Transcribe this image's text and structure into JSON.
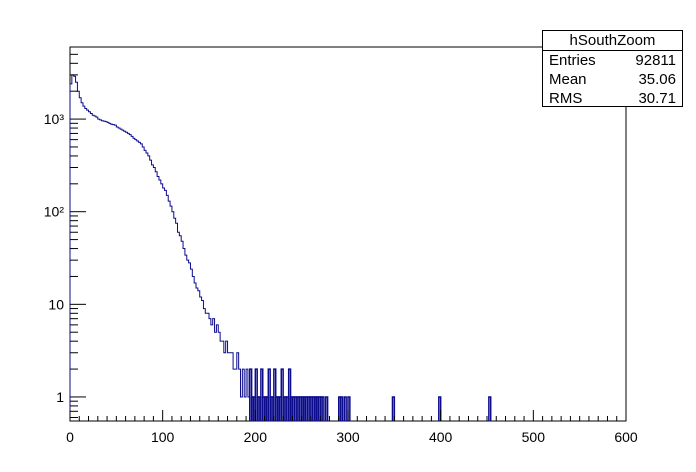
{
  "chart_data": {
    "type": "bar",
    "title": "",
    "xlabel": "",
    "ylabel": "",
    "xlim": [
      0,
      600
    ],
    "ylim": [
      0.55,
      6000
    ],
    "yscale": "log",
    "grid": false,
    "line_color": "#0b0b8c",
    "x_ticks": [
      0,
      100,
      200,
      300,
      400,
      500,
      600
    ],
    "x_tick_labels": [
      "0",
      "100",
      "200",
      "300",
      "400",
      "500",
      "600"
    ],
    "y_ticks": [
      1,
      10,
      100,
      1000
    ],
    "y_tick_labels": [
      "1",
      "10",
      "10²",
      "10³"
    ],
    "stats": {
      "name": "hSouthZoom",
      "rows": [
        {
          "label": "Entries",
          "value": "92811"
        },
        {
          "label": "Mean",
          "value": "35.06"
        },
        {
          "label": "RMS",
          "value": "30.71"
        }
      ]
    },
    "bin_width": 2,
    "main_bins_x": [
      0,
      2,
      4,
      6,
      8,
      10,
      12,
      14,
      16,
      18,
      20,
      22,
      24,
      26,
      28,
      30,
      32,
      34,
      36,
      38,
      40,
      42,
      44,
      46,
      48,
      50,
      52,
      54,
      56,
      58,
      60,
      62,
      64,
      66,
      68,
      70,
      72,
      74,
      76,
      78,
      80,
      82,
      84,
      86,
      88,
      90,
      92,
      94,
      96,
      98,
      100,
      102,
      104,
      106,
      108,
      110,
      112,
      114,
      116,
      118,
      120,
      122,
      124,
      126,
      128,
      130,
      132,
      134,
      136,
      138,
      140,
      142,
      144,
      146,
      148,
      150,
      152,
      154,
      156,
      158,
      160,
      162,
      164,
      166,
      168,
      170,
      172,
      174,
      176,
      178,
      180,
      182,
      184,
      186,
      188,
      190,
      192
    ],
    "main_bins_y": [
      2400,
      3000,
      2900,
      2500,
      2000,
      1700,
      1500,
      1380,
      1300,
      1250,
      1200,
      1150,
      1100,
      1080,
      1050,
      1000,
      980,
      960,
      950,
      940,
      920,
      900,
      880,
      870,
      860,
      820,
      800,
      780,
      760,
      740,
      720,
      700,
      680,
      650,
      620,
      600,
      580,
      560,
      540,
      500,
      460,
      430,
      400,
      360,
      320,
      300,
      270,
      240,
      220,
      200,
      180,
      170,
      150,
      130,
      115,
      100,
      85,
      75,
      60,
      55,
      48,
      40,
      34,
      30,
      28,
      24,
      20,
      17,
      15,
      14,
      12,
      11,
      9,
      8,
      8,
      7,
      6,
      7,
      5,
      6,
      5,
      4,
      4,
      3,
      4,
      3,
      3,
      3,
      2,
      2,
      3,
      2,
      1,
      2,
      1,
      2,
      1
    ],
    "sparse_bins_x": [
      194,
      196,
      198,
      200,
      202,
      204,
      206,
      208,
      210,
      212,
      214,
      216,
      218,
      220,
      222,
      224,
      226,
      228,
      230,
      232,
      234,
      236,
      238,
      240,
      242,
      244,
      246,
      248,
      250,
      252,
      254,
      256,
      258,
      260,
      262,
      264,
      266,
      268,
      270,
      272,
      276,
      290,
      292,
      296,
      300,
      348,
      398,
      452
    ],
    "sparse_bins_y": [
      2,
      1,
      1,
      2,
      1,
      1,
      2,
      1,
      1,
      1,
      2,
      1,
      1,
      2,
      1,
      1,
      1,
      2,
      1,
      1,
      1,
      2,
      1,
      1,
      1,
      1,
      1,
      1,
      1,
      1,
      1,
      1,
      1,
      1,
      1,
      1,
      1,
      1,
      1,
      1,
      1,
      1,
      1,
      1,
      1,
      1,
      1,
      1
    ]
  }
}
